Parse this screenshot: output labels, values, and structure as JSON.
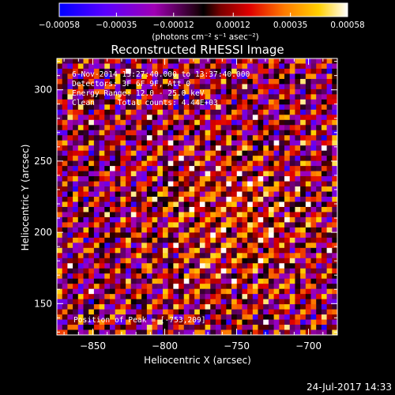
{
  "chart_data": {
    "type": "heatmap",
    "title": "Reconstructed RHESSI Image",
    "xlabel": "Heliocentric X (arcsec)",
    "ylabel": "Heliocentric Y (arcsec)",
    "xlim": [
      -875,
      -680
    ],
    "ylim": [
      128,
      322
    ],
    "x_ticks": [
      -850,
      -800,
      -750,
      -700
    ],
    "y_ticks": [
      150,
      200,
      250,
      300
    ],
    "x_tick_labels": [
      "−850",
      "−800",
      "−750",
      "−700"
    ],
    "y_tick_labels": [
      "150",
      "200",
      "250",
      "300"
    ],
    "colorbar": {
      "range": [
        -0.00058,
        0.00058
      ],
      "ticks": [
        -0.00058,
        -0.00035,
        -0.00012,
        0.00012,
        0.00035,
        0.00058
      ],
      "tick_labels": [
        "−0.00058",
        "−0.00035",
        "−0.00012",
        "0.00012",
        "0.00035",
        "0.00058"
      ],
      "units_label": "(photons cm⁻² s⁻¹ asec⁻²)"
    },
    "annotations": {
      "time_range": "6-Nov-2014 13:27:40.000 to 13:37:40.000",
      "detectors": "Detectors: 3F 6F 9F, Att 0",
      "energy": "Energy Range: 12.0 - 25.0 keV",
      "method": "Clean     Total counts: 4.44E+03",
      "peak": "Position of Peak = [-753,209]"
    },
    "peak": {
      "x": -753,
      "y": 209
    },
    "grid": {
      "nx": 53,
      "ny": 54
    }
  },
  "footer": {
    "date": "24-Jul-2017 14:33"
  }
}
